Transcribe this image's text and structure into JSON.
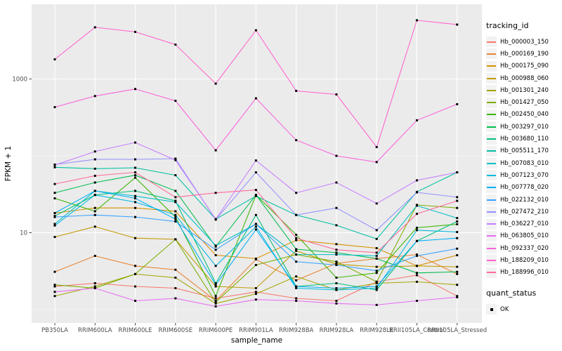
{
  "chart_data": {
    "type": "line",
    "title": "",
    "xlabel": "sample_name",
    "ylabel": "FPKM + 1",
    "y_scale": "log10",
    "grid": true,
    "legend_position": "right",
    "point_shape": "filled-square",
    "point_color": "#000000",
    "categories": [
      "PB350LA",
      "RRIM600LA",
      "RRIM600LE",
      "RRIM600SE",
      "RRIM600PE",
      "RRIM901LA",
      "RRIM928BA",
      "RRIM928LA",
      "RRIM928LE",
      "RRII105LA_Control",
      "RRII105LA_Stressed"
    ],
    "y_axis": {
      "ticks": [
        {
          "label": "1000",
          "value": 1000
        },
        {
          "label": "10",
          "value": 10
        }
      ],
      "major_gridlines": [
        10,
        1000
      ],
      "minor_gridlines": [
        1,
        100
      ],
      "range_approx": [
        0.9,
        10000
      ]
    },
    "series": [
      {
        "name": "Hb_000003_150",
        "color": "#F8766D",
        "values": [
          2.0,
          2.2,
          2.0,
          1.9,
          1.4,
          1.7,
          1.4,
          1.3,
          2.3,
          2.8,
          1.5
        ]
      },
      {
        "name": "Hb_000169_190",
        "color": "#EA8331",
        "values": [
          3.1,
          5.0,
          3.7,
          3.3,
          1.3,
          4.5,
          2.4,
          4.0,
          4.6,
          5.2,
          2.9
        ]
      },
      {
        "name": "Hb_000175_090",
        "color": "#D89000",
        "values": [
          18,
          21,
          21,
          19,
          5.1,
          4.6,
          8.0,
          7.1,
          6.3,
          3.7,
          5.1
        ]
      },
      {
        "name": "Hb_000988_060",
        "color": "#C09B00",
        "values": [
          8.8,
          12,
          8.5,
          8.2,
          2.0,
          1.9,
          5.8,
          3.9,
          3.6,
          3.7,
          3.6
        ]
      },
      {
        "name": "Hb_001301_240",
        "color": "#A3A500",
        "values": [
          1.5,
          2.0,
          2.9,
          2.6,
          1.2,
          1.6,
          2.7,
          1.8,
          2.2,
          2.3,
          2.1
        ]
      },
      {
        "name": "Hb_001427_050",
        "color": "#7CAE00",
        "values": [
          2.1,
          1.9,
          2.9,
          8.2,
          1.25,
          3.8,
          5.2,
          4.2,
          2.3,
          23,
          21
        ]
      },
      {
        "name": "Hb_002450_040",
        "color": "#39B600",
        "values": [
          28,
          19,
          52,
          16,
          1.5,
          31,
          9.4,
          2.6,
          3.0,
          11.6,
          12.9
        ]
      },
      {
        "name": "Hb_003297_010",
        "color": "#00BB4E",
        "values": [
          33,
          45,
          56,
          35,
          6.6,
          31,
          6.1,
          5.5,
          4.6,
          3.0,
          3.1
        ]
      },
      {
        "name": "Hb_003680_110",
        "color": "#00BF7D",
        "values": [
          16.5,
          31,
          35,
          26,
          2.2,
          17,
          2.0,
          2.2,
          1.8,
          7.8,
          14
        ]
      },
      {
        "name": "Hb_005511_170",
        "color": "#00C1A3",
        "values": [
          71,
          68,
          70,
          56,
          15,
          30,
          17,
          12.5,
          8.3,
          34,
          61
        ]
      },
      {
        "name": "Hb_007083_010",
        "color": "#00BFC4",
        "values": [
          13,
          35,
          30,
          25,
          6.8,
          13,
          5.2,
          5.2,
          5.0,
          22.5,
          15.5
        ]
      },
      {
        "name": "Hb_007123_070",
        "color": "#00BAE0",
        "values": [
          12.4,
          31,
          25,
          17,
          3.7,
          12,
          1.9,
          1.8,
          1.9,
          10.8,
          10.2
        ]
      },
      {
        "name": "Hb_007778_020",
        "color": "#00B0F6",
        "values": [
          18,
          35,
          28,
          15,
          2.1,
          11,
          2.0,
          1.9,
          2.0,
          7.8,
          8.5
        ]
      },
      {
        "name": "Hb_022132_010",
        "color": "#35A2FF",
        "values": [
          16,
          17,
          16,
          14,
          6.0,
          13,
          4.2,
          3.8,
          3.2,
          5.0,
          6.2
        ]
      },
      {
        "name": "Hb_027472_210",
        "color": "#9590FF",
        "values": [
          77,
          90,
          90,
          92,
          14.8,
          61,
          17,
          21,
          10.8,
          33.5,
          29
        ]
      },
      {
        "name": "Hb_036227_010",
        "color": "#C77CFF",
        "values": [
          76,
          114,
          149,
          88,
          15,
          87,
          33,
          45,
          24,
          48,
          61
        ]
      },
      {
        "name": "Hb_063805_010",
        "color": "#E76BF3",
        "values": [
          1.7,
          1.9,
          1.3,
          1.4,
          1.1,
          1.35,
          1.3,
          1.2,
          1.15,
          1.3,
          1.45
        ]
      },
      {
        "name": "Hb_092337_020",
        "color": "#FA62DB",
        "values": [
          430,
          600,
          740,
          520,
          118,
          560,
          160,
          100,
          83,
          290,
          470
        ]
      },
      {
        "name": "Hb_188209_010",
        "color": "#FF61CC",
        "values": [
          1800,
          4700,
          4100,
          2800,
          870,
          4300,
          700,
          630,
          130,
          5800,
          5100
        ]
      },
      {
        "name": "Hb_188996_010",
        "color": "#FF6A98",
        "values": [
          43,
          55,
          61,
          29,
          33,
          36,
          8.5,
          6.0,
          5.5,
          17.6,
          26
        ]
      }
    ]
  },
  "legend": {
    "tracking_title": "tracking_id",
    "quant_title": "quant_status",
    "quant_items": [
      {
        "label": "OK"
      }
    ]
  },
  "colors": {
    "panel_background": "#EBEBEB",
    "gridline": "#FFFFFF",
    "tick_text": "#4D4D4D",
    "axis_title_text": "#000000",
    "legend_key_background": "#F2F2F2",
    "point": "#000000"
  }
}
